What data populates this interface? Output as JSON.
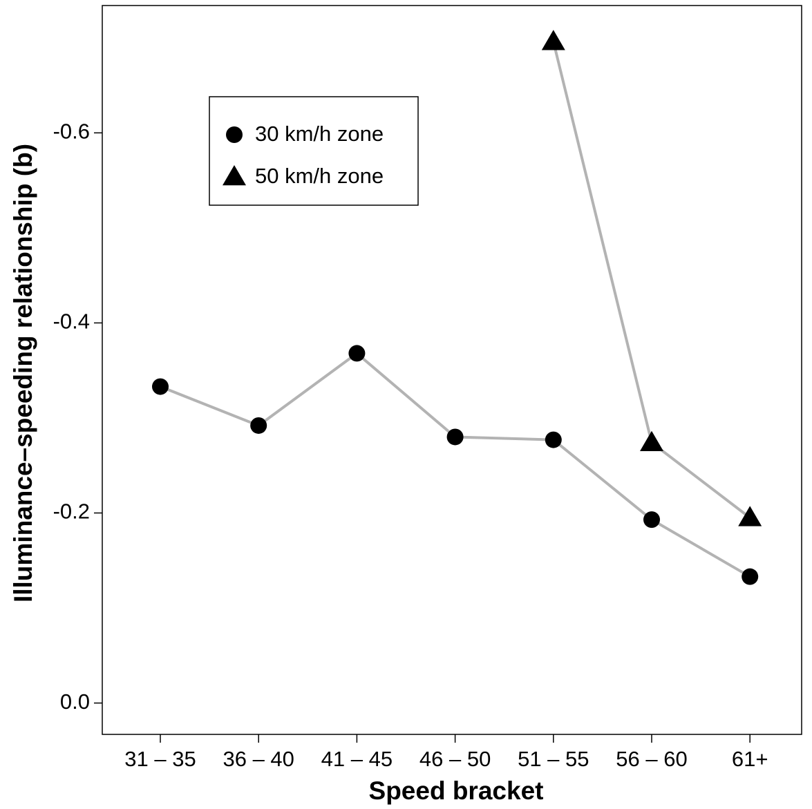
{
  "chart_data": {
    "type": "line",
    "x_label": "Speed bracket",
    "y_label": "Illuminance–speeding relationship (b)",
    "categories": [
      "31 – 35",
      "36 – 40",
      "41 – 45",
      "46 – 50",
      "51 – 55",
      "56 – 60",
      "61+"
    ],
    "series": [
      {
        "name": "30 km/h zone",
        "marker": "circle",
        "color": "#000000",
        "line_color": "#b3b3b3",
        "values": [
          -0.333,
          -0.292,
          -0.368,
          -0.28,
          -0.277,
          -0.193,
          -0.133
        ]
      },
      {
        "name": "50 km/h zone",
        "marker": "triangle",
        "color": "#000000",
        "line_color": "#b3b3b3",
        "values": [
          null,
          null,
          null,
          null,
          -0.696,
          -0.274,
          -0.195
        ]
      }
    ],
    "ylim": [
      0.033,
      -0.734
    ],
    "yticks": [
      {
        "value": 0,
        "label": "0.0"
      },
      -0.2,
      -0.4,
      -0.6
    ],
    "legend": "upper left"
  }
}
